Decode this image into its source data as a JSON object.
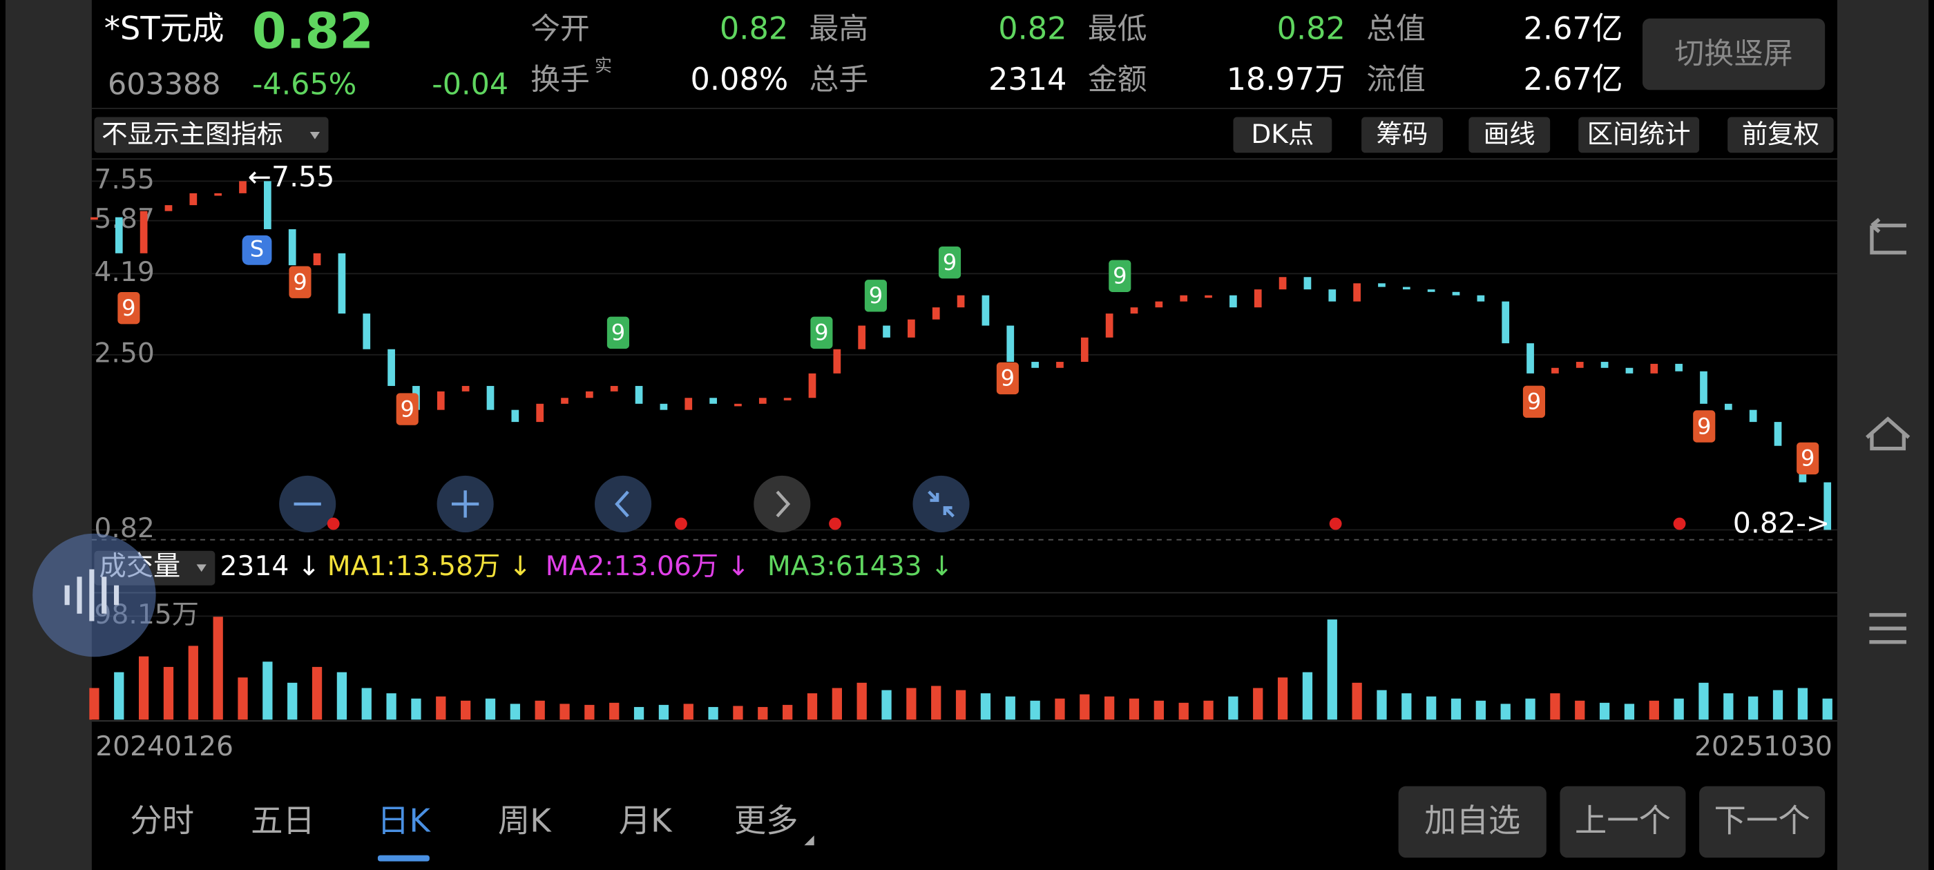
{
  "quote": {
    "name": "*ST元成",
    "price": "0.82",
    "code": "603388",
    "change_pct": "-4.65%",
    "change": "-0.04",
    "fields": [
      {
        "label": "今开",
        "value": "0.82",
        "color": "#5fd65f"
      },
      {
        "label": "最高",
        "value": "0.82",
        "color": "#5fd65f"
      },
      {
        "label": "最低",
        "value": "0.82",
        "color": "#5fd65f"
      },
      {
        "label": "总值",
        "value": "2.67亿",
        "color": "#ffffff"
      },
      {
        "label": "换手",
        "sup": "实",
        "value": "0.08%",
        "color": "#ffffff"
      },
      {
        "label": "总手",
        "value": "2314",
        "color": "#ffffff"
      },
      {
        "label": "金额",
        "value": "18.97万",
        "color": "#ffffff"
      },
      {
        "label": "流值",
        "value": "2.67亿",
        "color": "#ffffff"
      }
    ]
  },
  "orientation_button": "切换竖屏",
  "toolbar": {
    "indicator": "不显示主图指标",
    "buttons": [
      "DK点",
      "筹码",
      "画线",
      "区间统计",
      "前复权"
    ]
  },
  "chart_data": {
    "type": "kline",
    "log_scale": true,
    "up_color": "#e8452f",
    "down_color": "#5fd8e4",
    "values": [
      6.0,
      4.77,
      6.24,
      6.48,
      6.99,
      6.99,
      7.55,
      5.56,
      4.42,
      4.77,
      3.25,
      2.59,
      2.05,
      1.76,
      1.98,
      2.05,
      1.76,
      1.63,
      1.83,
      1.9,
      1.98,
      2.05,
      1.83,
      1.76,
      1.9,
      1.83,
      1.83,
      1.9,
      1.9,
      2.22,
      2.59,
      3.01,
      2.79,
      3.13,
      3.38,
      3.65,
      3.01,
      2.39,
      2.3,
      2.39,
      2.79,
      3.25,
      3.38,
      3.51,
      3.65,
      3.65,
      3.38,
      3.79,
      4.1,
      3.79,
      3.51,
      3.94,
      3.85,
      3.79,
      3.73,
      3.65,
      3.51,
      2.69,
      2.22,
      2.3,
      2.39,
      2.3,
      2.22,
      2.36,
      2.25,
      1.83,
      1.76,
      1.63,
      1.4,
      1.11,
      0.82
    ],
    "ylim": [
      0.82,
      7.55
    ],
    "yticks": [
      0.82,
      {
        "value": 2.5,
        "label": "2.50"
      },
      4.19,
      5.87,
      7.55
    ],
    "max_label": "←7.55",
    "last_label": "0.82->",
    "signal_badge": "S",
    "td_signals": [
      "9",
      "9",
      "9",
      "9",
      "9",
      "9",
      "9",
      "9",
      "9",
      "9",
      "9",
      "9"
    ],
    "x_start": "20240126",
    "x_end": "20251030",
    "volume": {
      "values": [
        30,
        45,
        60,
        50,
        70,
        98.15,
        40,
        55,
        35,
        50,
        45,
        30,
        25,
        20,
        22,
        18,
        20,
        15,
        18,
        15,
        14,
        16,
        12,
        14,
        15,
        12,
        13,
        12,
        14,
        25,
        30,
        35,
        28,
        30,
        32,
        28,
        25,
        22,
        18,
        20,
        24,
        22,
        20,
        18,
        16,
        18,
        22,
        30,
        40,
        45,
        95,
        35,
        28,
        25,
        22,
        20,
        18,
        15,
        20,
        25,
        18,
        16,
        15,
        18,
        20,
        35,
        25,
        22,
        28,
        30,
        20
      ],
      "ylim": [
        0,
        98.15
      ],
      "yticks": [
        {
          "value": 98.15,
          "label": "98.15万"
        }
      ]
    }
  },
  "volume_header": {
    "label": "成交量",
    "value": "2314 ↓",
    "ma": [
      {
        "label": "MA1:13.58万 ↓",
        "color": "#f3e13a"
      },
      {
        "label": "MA2:13.06万 ↓",
        "color": "#e040e8"
      },
      {
        "label": "MA3:61433 ↓",
        "color": "#5fd65f"
      }
    ]
  },
  "tabs": [
    {
      "label": "分时"
    },
    {
      "label": "五日"
    },
    {
      "label": "日K",
      "active": true
    },
    {
      "label": "周K"
    },
    {
      "label": "月K"
    },
    {
      "label": "更多"
    }
  ],
  "actions": [
    "加自选",
    "上一个",
    "下一个"
  ]
}
